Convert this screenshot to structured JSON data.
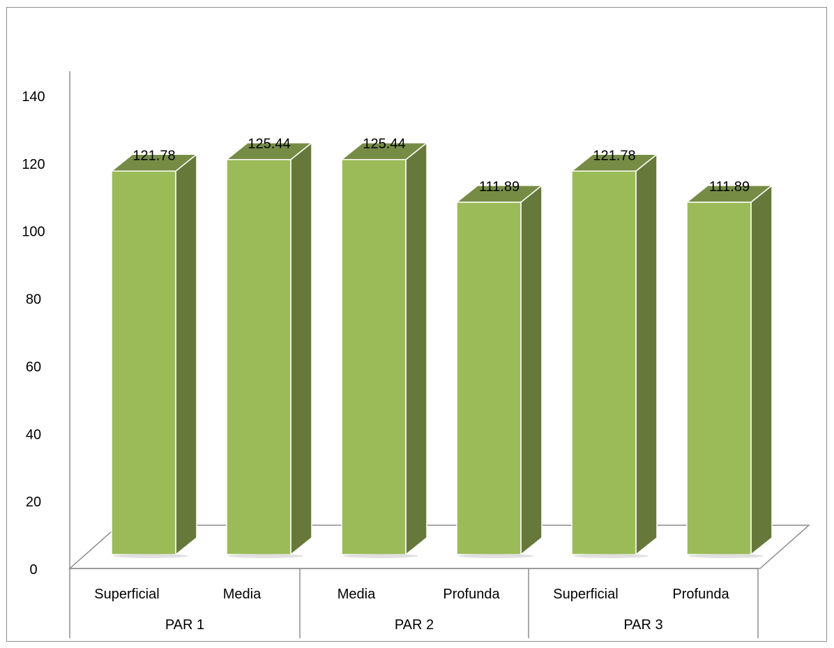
{
  "chart_data": {
    "type": "bar",
    "style": "3d-column",
    "title": "",
    "xlabel": "",
    "ylabel": "",
    "ylim": [
      0,
      140
    ],
    "ytick_step": 20,
    "yticks": [
      "0",
      "20",
      "40",
      "60",
      "80",
      "100",
      "120",
      "140"
    ],
    "grid": false,
    "legend": "none",
    "groups": [
      {
        "label": "PAR 1",
        "categories": [
          "Superficial",
          "Media"
        ]
      },
      {
        "label": "PAR 2",
        "categories": [
          "Media",
          "Profunda"
        ]
      },
      {
        "label": "PAR 3",
        "categories": [
          "Superficial",
          "Profunda"
        ]
      }
    ],
    "categories": [
      "Superficial",
      "Media",
      "Media",
      "Profunda",
      "Superficial",
      "Profunda"
    ],
    "values": [
      121.78,
      125.44,
      125.44,
      111.89,
      121.78,
      111.89
    ],
    "data_labels": [
      "121.78",
      "125.44",
      "125.44",
      "111.89",
      "121.78",
      "111.89"
    ],
    "colors": {
      "bar_front": "#9bbb59",
      "bar_side": "#67793a",
      "bar_top": "#768c45",
      "bar_edge": "#ffffff",
      "axis": "#8c8c8c"
    }
  }
}
